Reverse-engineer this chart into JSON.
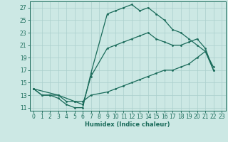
{
  "line1_x": [
    0,
    1,
    2,
    3,
    4,
    5,
    6,
    7,
    9,
    10,
    11,
    12,
    13,
    14,
    15,
    16,
    17,
    18,
    19,
    20,
    21,
    22
  ],
  "line1_y": [
    14,
    13,
    13,
    12.5,
    11.5,
    11,
    11,
    16.5,
    26,
    26.5,
    27,
    27.5,
    26.5,
    27,
    26,
    25,
    23.5,
    23,
    22,
    21,
    20,
    17.5
  ],
  "line2_x": [
    0,
    1,
    2,
    3,
    4,
    5,
    6,
    7,
    9,
    10,
    11,
    12,
    13,
    14,
    15,
    16,
    17,
    18,
    19,
    20,
    21,
    22
  ],
  "line2_y": [
    14,
    13,
    13,
    13,
    12,
    12,
    12,
    13,
    13.5,
    14,
    14.5,
    15,
    15.5,
    16,
    16.5,
    17,
    17,
    17.5,
    18,
    19,
    20,
    17
  ],
  "line3_x": [
    0,
    3,
    5,
    6,
    7,
    9,
    10,
    11,
    12,
    13,
    14,
    15,
    16,
    17,
    18,
    19,
    20,
    21,
    22
  ],
  "line3_y": [
    14,
    13,
    12,
    11.5,
    16,
    20.5,
    21,
    21.5,
    22,
    22.5,
    23,
    22,
    21.5,
    21,
    21,
    21.5,
    22,
    20.5,
    17
  ],
  "line_color": "#1a6b5a",
  "bg_color": "#cce8e4",
  "grid_color": "#aacfcc",
  "xlabel": "Humidex (Indice chaleur)",
  "xlim": [
    -0.5,
    23.5
  ],
  "ylim": [
    10.5,
    28
  ],
  "xticks": [
    0,
    1,
    2,
    3,
    4,
    5,
    6,
    7,
    8,
    9,
    10,
    11,
    12,
    13,
    14,
    15,
    16,
    17,
    18,
    19,
    20,
    21,
    22,
    23
  ],
  "yticks": [
    11,
    13,
    15,
    17,
    19,
    21,
    23,
    25,
    27
  ],
  "axis_fontsize": 6,
  "tick_fontsize": 5.5
}
